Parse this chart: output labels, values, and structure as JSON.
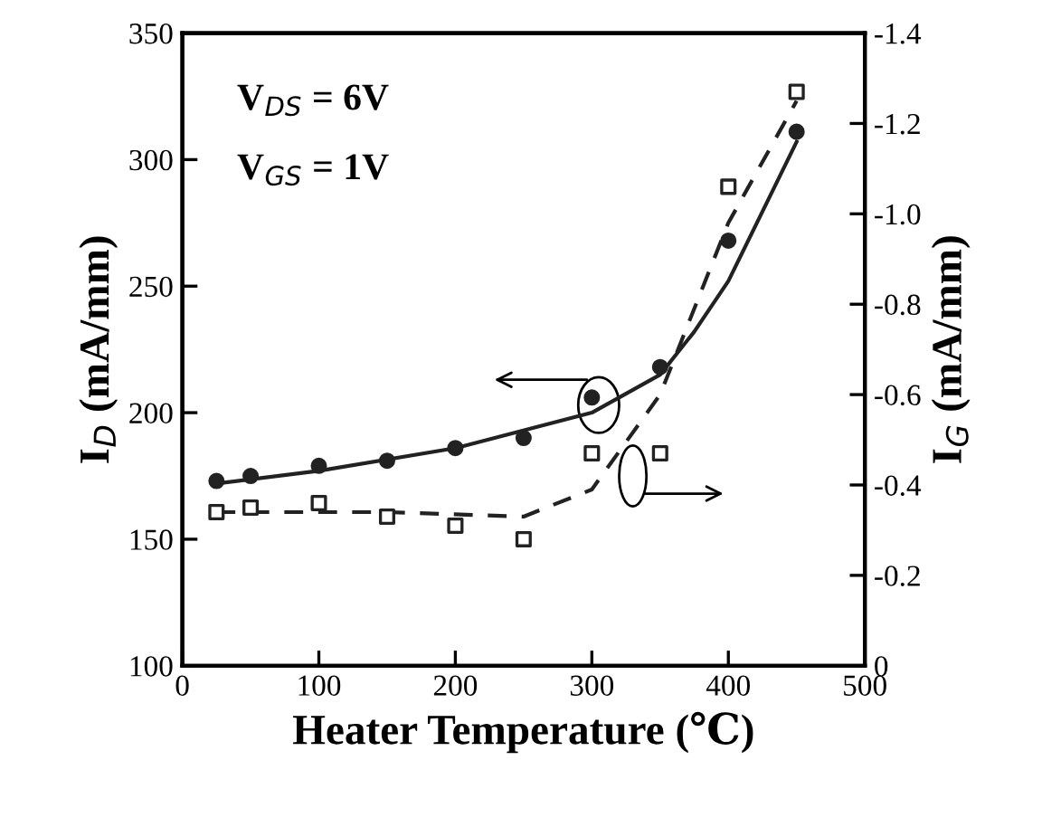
{
  "chart_data": {
    "type": "scatter",
    "xlabel": "Heater Temperature (℃)",
    "ylabel": "I$_{D}$ (mA/mm)",
    "y2label": "I$_{G}$ (mA/mm)",
    "annotations": [
      "V$_{DS}$ = 6V",
      "V$_{GS}$ = 1V"
    ],
    "xlim": [
      0,
      500
    ],
    "xticks": [
      0,
      100,
      200,
      300,
      400,
      500
    ],
    "ylim": [
      100,
      350
    ],
    "yticks": [
      100,
      150,
      200,
      250,
      300,
      350
    ],
    "y2lim": [
      0,
      -1.4
    ],
    "y2ticks": [
      0,
      -0.2,
      -0.4,
      -0.6,
      -0.8,
      {
        "value": -1.0,
        "label": "-1.0"
      },
      -1.2,
      -1.4
    ],
    "grid": false,
    "legend": false,
    "series": [
      {
        "marker": "circle",
        "color": "#222222",
        "x": [
          25,
          50,
          100,
          150,
          200,
          250,
          300,
          350,
          400,
          450
        ],
        "values": [
          173,
          175,
          179,
          181,
          186,
          190,
          206,
          218,
          268,
          311
        ]
      },
      {
        "type": "scatter",
        "marker": "square",
        "color": "#222222",
        "axis": "y2",
        "x": [
          25,
          50,
          100,
          150,
          200,
          250,
          300,
          350,
          400,
          450
        ],
        "values": [
          -0.34,
          -0.35,
          -0.36,
          -0.33,
          -0.31,
          -0.28,
          -0.47,
          -0.47,
          -1.06,
          -1.27
        ]
      },
      {
        "type": "line",
        "line_style": "solid",
        "color": "#222222",
        "x": [
          25,
          100,
          200,
          300,
          350,
          375,
          400,
          450
        ],
        "values": [
          172,
          177,
          186,
          200,
          215,
          232,
          252,
          307
        ]
      },
      {
        "type": "line",
        "line_style": "dashed",
        "color": "#222222",
        "axis": "y2",
        "x": [
          25,
          150,
          250,
          300,
          350,
          400,
          450
        ],
        "values": [
          -0.34,
          -0.34,
          -0.33,
          -0.39,
          -0.6,
          -0.98,
          -1.25
        ]
      }
    ]
  }
}
